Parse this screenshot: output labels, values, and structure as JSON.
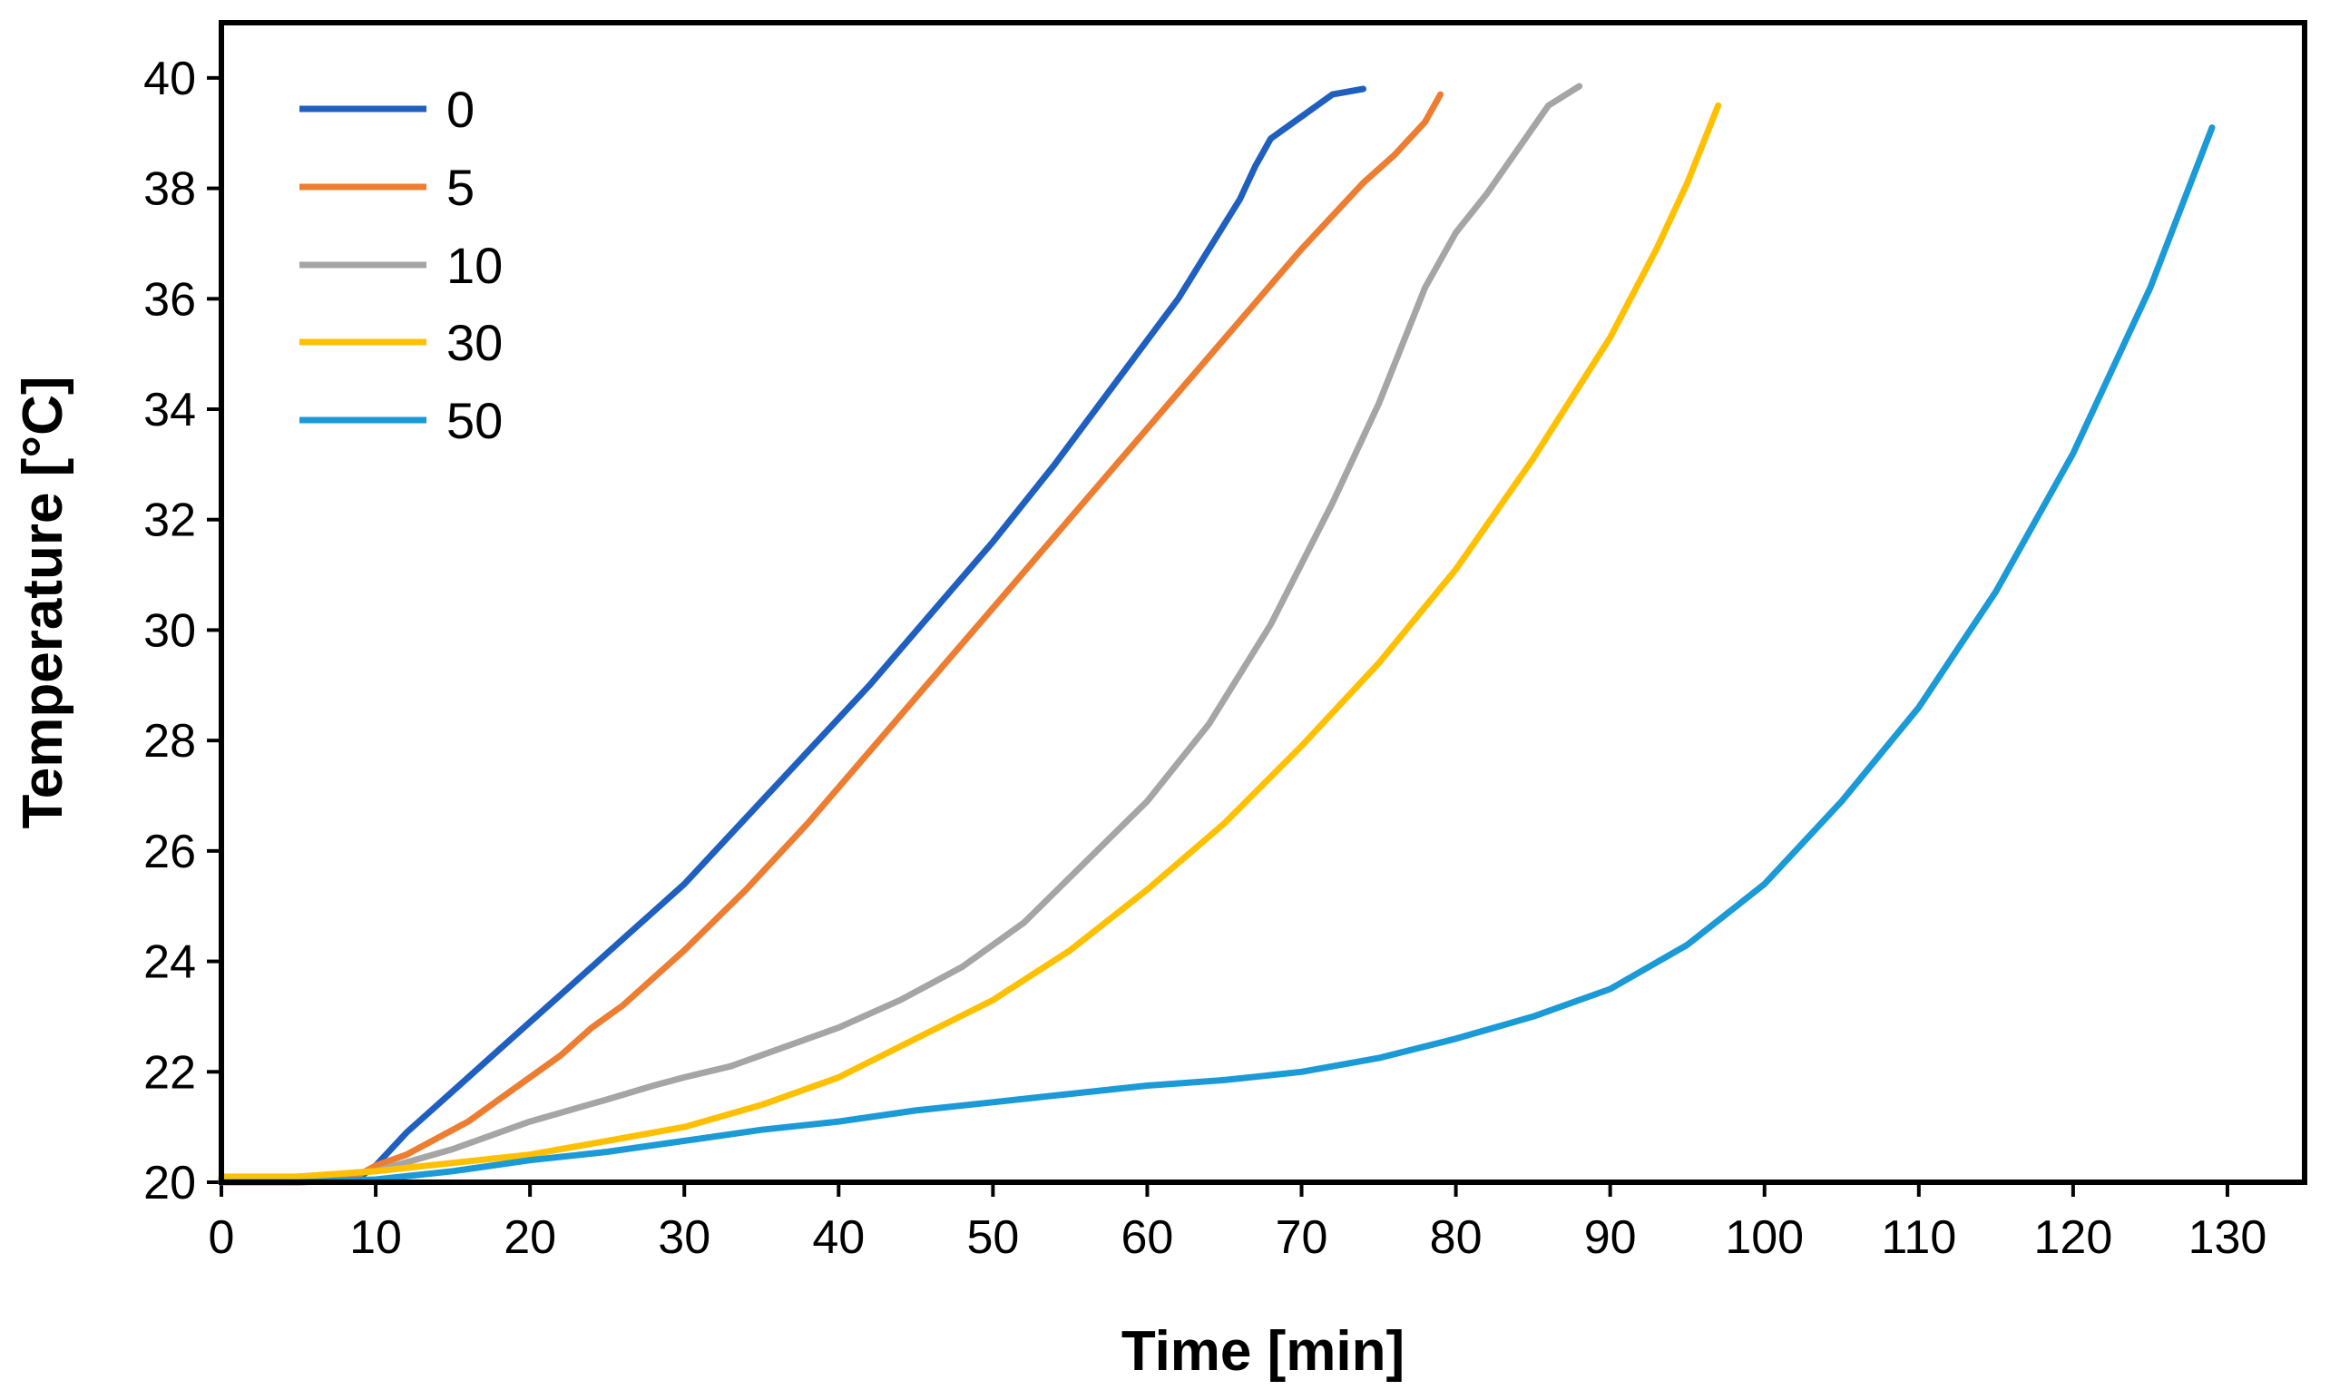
{
  "chart_data": {
    "type": "line",
    "title": "",
    "xlabel": "Time [min]",
    "ylabel": "Temperature [°C]",
    "xlim": [
      0,
      135
    ],
    "ylim": [
      20,
      41
    ],
    "xticks": [
      0,
      10,
      20,
      30,
      40,
      50,
      60,
      70,
      80,
      90,
      100,
      110,
      120,
      130
    ],
    "yticks": [
      20,
      22,
      24,
      26,
      28,
      30,
      32,
      34,
      36,
      38,
      40
    ],
    "legend_position": "top-left",
    "series": [
      {
        "name": "0",
        "color": "#1f5fc0",
        "x": [
          0,
          5,
          9,
          10,
          11,
          12,
          14,
          16,
          18,
          20,
          22,
          24,
          26,
          28,
          30,
          34,
          38,
          42,
          46,
          50,
          54,
          58,
          62,
          64,
          66,
          67,
          68,
          69,
          70,
          71,
          72,
          73,
          74
        ],
        "y": [
          20.0,
          20.05,
          20.1,
          20.3,
          20.6,
          20.9,
          21.4,
          21.9,
          22.4,
          22.9,
          23.4,
          23.9,
          24.4,
          24.9,
          25.4,
          26.6,
          27.8,
          29.0,
          30.3,
          31.6,
          33.0,
          34.5,
          36.0,
          36.9,
          37.8,
          38.4,
          38.9,
          39.1,
          39.3,
          39.5,
          39.7,
          39.75,
          39.8
        ]
      },
      {
        "name": "5",
        "color": "#ed7d31",
        "x": [
          0,
          5,
          9,
          10,
          12,
          14,
          16,
          18,
          20,
          22,
          24,
          26,
          28,
          30,
          34,
          38,
          42,
          46,
          50,
          54,
          58,
          62,
          66,
          70,
          74,
          76,
          78,
          79
        ],
        "y": [
          20.05,
          20.1,
          20.15,
          20.3,
          20.5,
          20.8,
          21.1,
          21.5,
          21.9,
          22.3,
          22.8,
          23.2,
          23.7,
          24.2,
          25.3,
          26.5,
          27.8,
          29.1,
          30.4,
          31.7,
          33.0,
          34.3,
          35.6,
          36.9,
          38.1,
          38.6,
          39.2,
          39.7
        ]
      },
      {
        "name": "10",
        "color": "#a5a5a5",
        "x": [
          0,
          5,
          10,
          15,
          20,
          25,
          28,
          30,
          33,
          36,
          40,
          44,
          48,
          52,
          56,
          60,
          64,
          68,
          72,
          75,
          78,
          80,
          82,
          84,
          86,
          88
        ],
        "y": [
          20.05,
          20.1,
          20.2,
          20.6,
          21.1,
          21.5,
          21.75,
          21.9,
          22.1,
          22.4,
          22.8,
          23.3,
          23.9,
          24.7,
          25.8,
          26.9,
          28.3,
          30.1,
          32.3,
          34.1,
          36.2,
          37.2,
          37.9,
          38.7,
          39.5,
          39.85
        ]
      },
      {
        "name": "30",
        "color": "#ffc000",
        "x": [
          0,
          5,
          10,
          15,
          20,
          25,
          30,
          35,
          40,
          45,
          50,
          55,
          60,
          65,
          70,
          75,
          80,
          85,
          90,
          93,
          95,
          97
        ],
        "y": [
          20.1,
          20.1,
          20.2,
          20.35,
          20.5,
          20.75,
          21.0,
          21.4,
          21.9,
          22.6,
          23.3,
          24.2,
          25.3,
          26.5,
          27.9,
          29.4,
          31.1,
          33.1,
          35.3,
          36.9,
          38.1,
          39.5
        ]
      },
      {
        "name": "50",
        "color": "#1a9ad6",
        "x": [
          0,
          5,
          10,
          15,
          20,
          25,
          30,
          35,
          40,
          45,
          50,
          55,
          60,
          65,
          70,
          75,
          80,
          85,
          90,
          95,
          100,
          105,
          110,
          115,
          120,
          125,
          129
        ],
        "y": [
          20.0,
          20.0,
          20.05,
          20.2,
          20.4,
          20.55,
          20.75,
          20.95,
          21.1,
          21.3,
          21.45,
          21.6,
          21.75,
          21.85,
          22.0,
          22.25,
          22.6,
          23.0,
          23.5,
          24.3,
          25.4,
          26.9,
          28.6,
          30.7,
          33.2,
          36.2,
          39.1
        ]
      }
    ]
  }
}
